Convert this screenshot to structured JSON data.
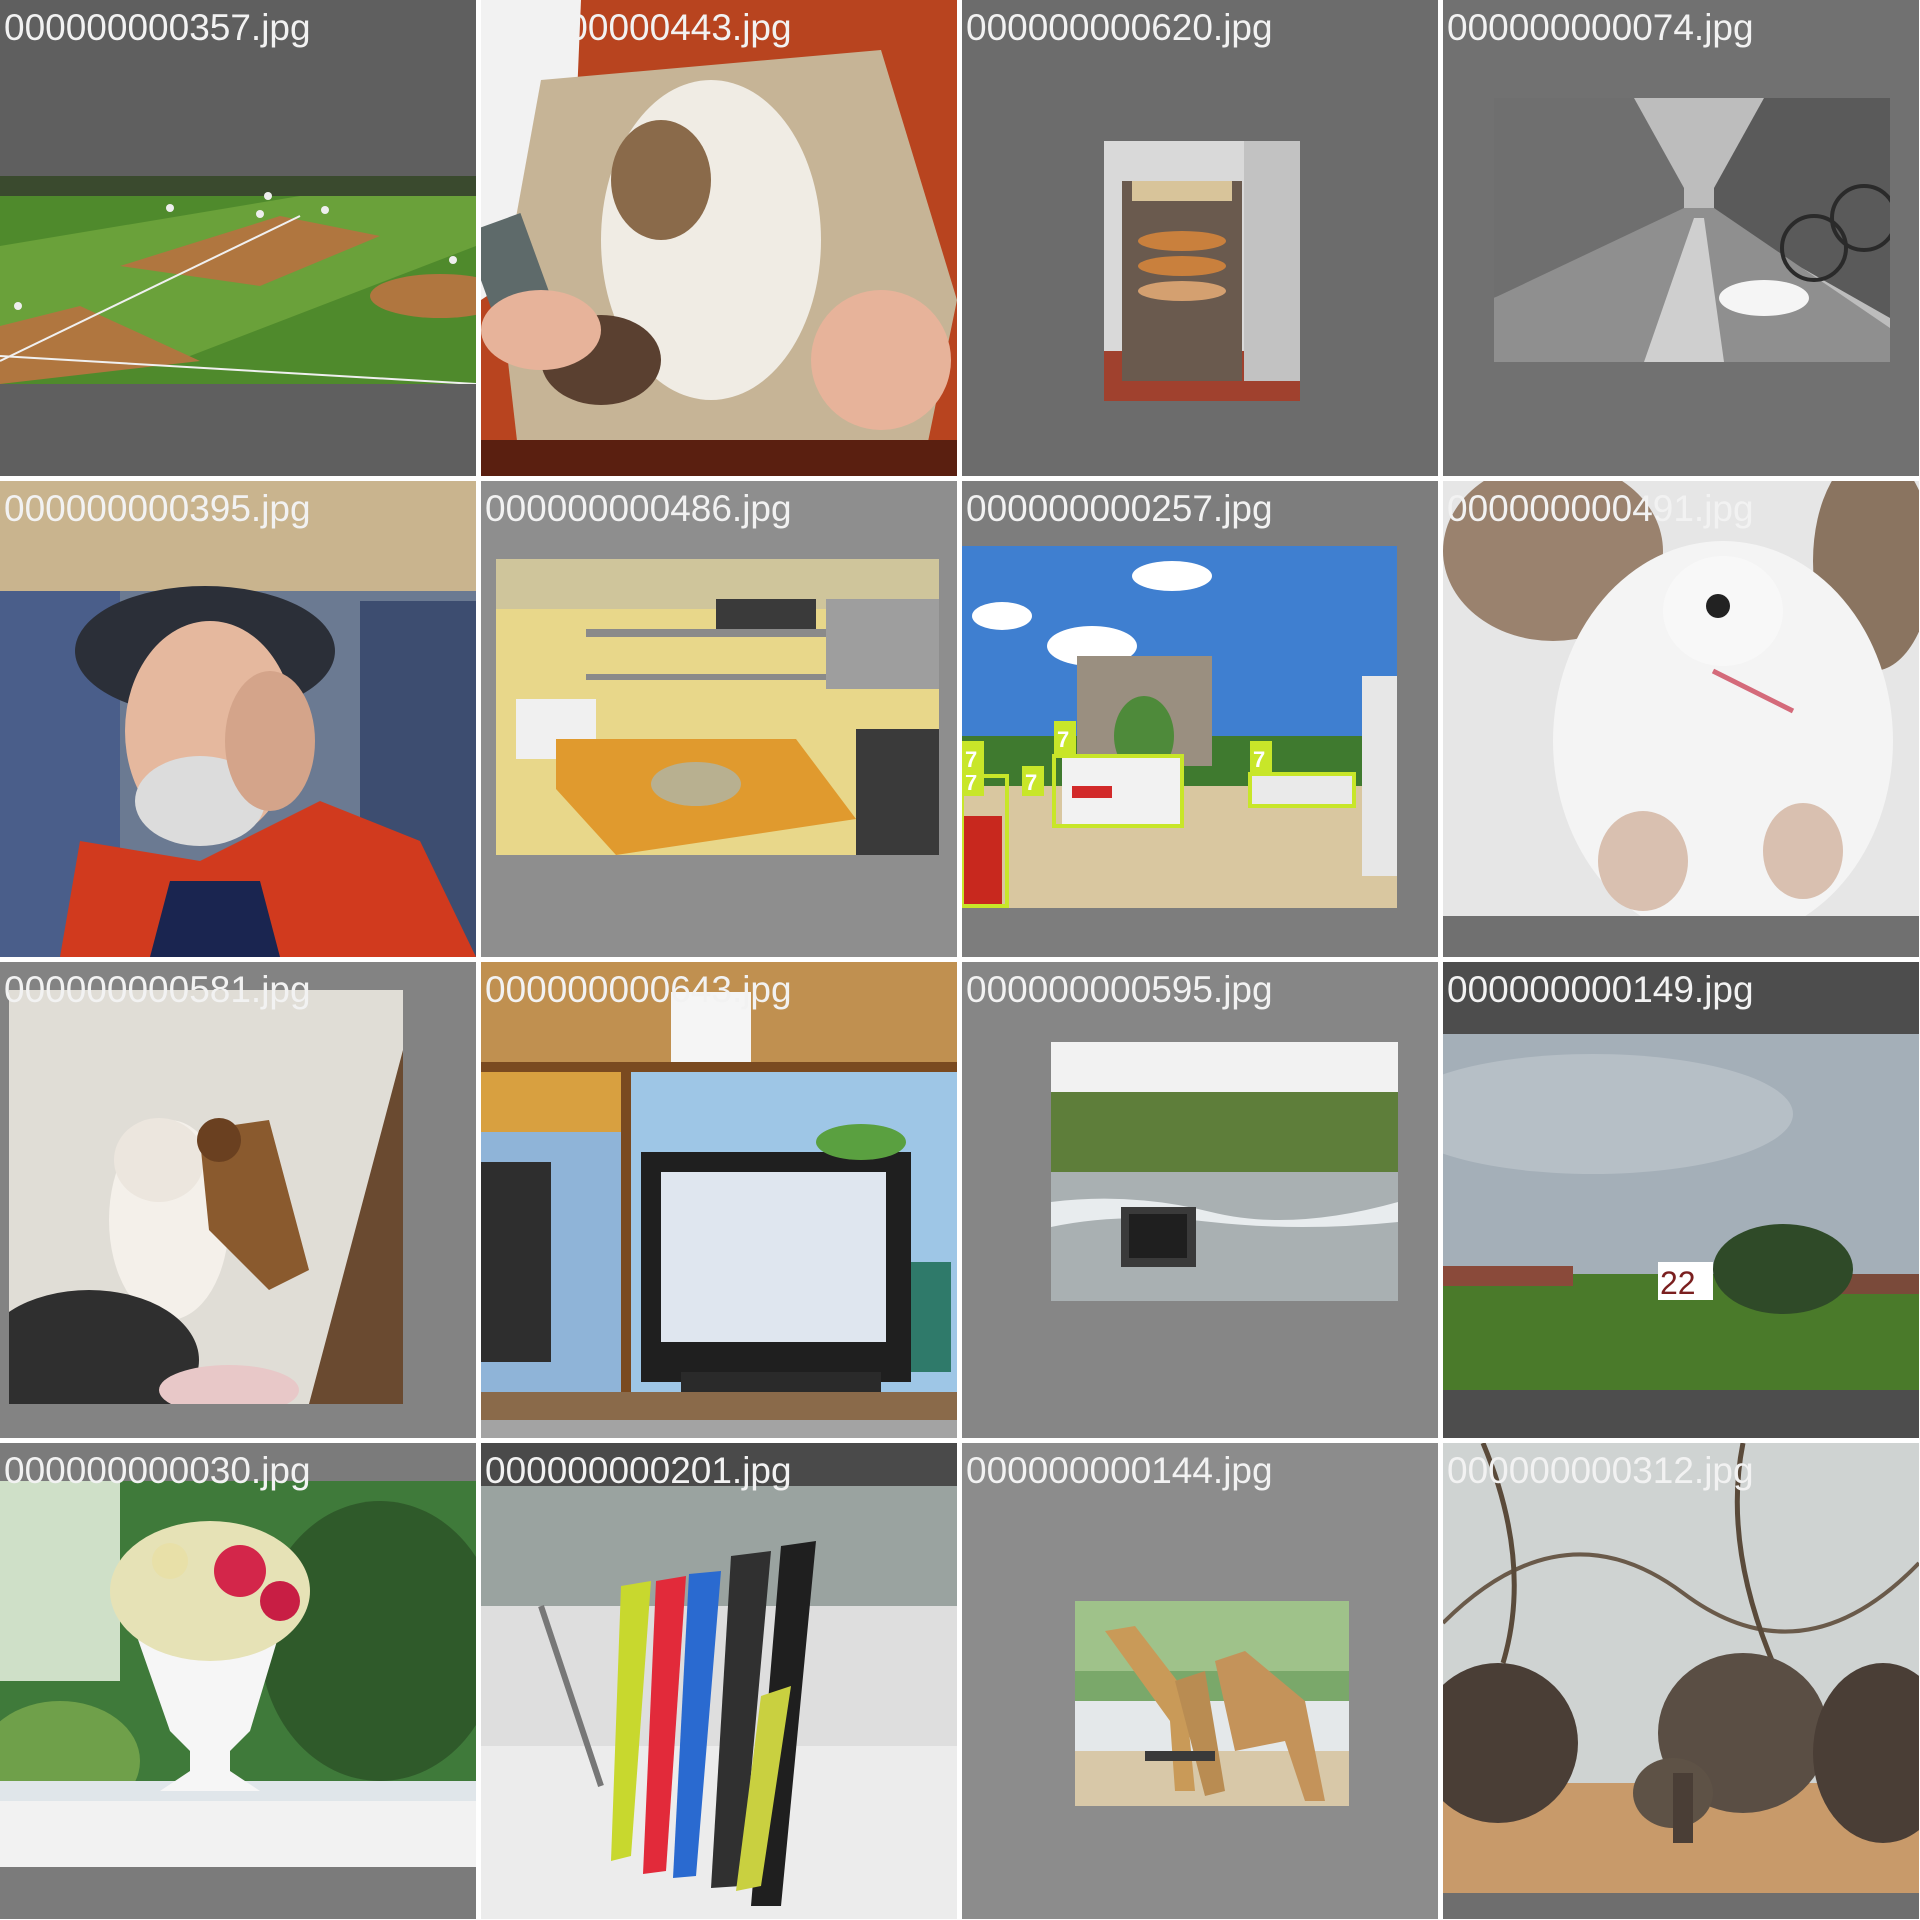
{
  "grid": {
    "tiles": [
      {
        "filename": "000000000357.jpg",
        "bg": "#5f5f5f",
        "subject": "baseball-field"
      },
      {
        "filename": "000000000443.jpg",
        "bg": "#7a7a7a",
        "subject": "cat-on-lap"
      },
      {
        "filename": "000000000620.jpg",
        "bg": "#6c6c6c",
        "subject": "pizza-oven-rack"
      },
      {
        "filename": "000000000074.jpg",
        "bg": "#717171",
        "subject": "street-dog-bicycle"
      },
      {
        "filename": "000000000395.jpg",
        "bg": "#6a6a6a",
        "subject": "man-on-phone"
      },
      {
        "filename": "000000000486.jpg",
        "bg": "#8e8e8e",
        "subject": "kitchen"
      },
      {
        "filename": "000000000257.jpg",
        "bg": "#7d7d7d",
        "subject": "plaza-trucks-arch"
      },
      {
        "filename": "000000000491.jpg",
        "bg": "#707070",
        "subject": "white-teddy-bear"
      },
      {
        "filename": "000000000581.jpg",
        "bg": "#838383",
        "subject": "dog-with-giraffe-toy"
      },
      {
        "filename": "000000000643.jpg",
        "bg": "#a3a3a3",
        "subject": "desk-crt-monitor"
      },
      {
        "filename": "000000000595.jpg",
        "bg": "#868686",
        "subject": "tv-in-river"
      },
      {
        "filename": "000000000149.jpg",
        "bg": "#4d4d4d",
        "subject": "kite-field"
      },
      {
        "filename": "000000000030.jpg",
        "bg": "#7b7b7b",
        "subject": "flower-vase"
      },
      {
        "filename": "000000000201.jpg",
        "bg": "#4a4a4a",
        "subject": "snowboards"
      },
      {
        "filename": "000000000144.jpg",
        "bg": "#8c8c8c",
        "subject": "giraffes"
      },
      {
        "filename": "000000000312.jpg",
        "bg": "#6e6e6e",
        "subject": "elephants"
      }
    ]
  },
  "annotations": {
    "trucks": {
      "label": "7",
      "color": "#c8e629",
      "count": 5
    },
    "kites": {
      "label": "22",
      "color": "#7a1f1f",
      "count": 2
    }
  }
}
